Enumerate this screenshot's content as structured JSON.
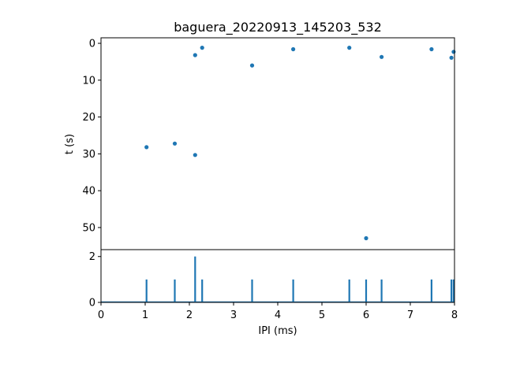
{
  "chart_data": [
    {
      "type": "scatter",
      "title": "baguera_20220913_145203_532",
      "xlabel": "",
      "ylabel": "t (s)",
      "xlim": [
        0,
        8
      ],
      "ylim": [
        56,
        -1.5
      ],
      "y_inverted": true,
      "yticks": [
        0,
        10,
        20,
        30,
        40,
        50
      ],
      "color": "#1f77b4",
      "points": [
        {
          "x": 1.03,
          "y": 28.2
        },
        {
          "x": 1.67,
          "y": 27.2
        },
        {
          "x": 2.13,
          "y": 30.3
        },
        {
          "x": 2.13,
          "y": 3.2
        },
        {
          "x": 2.29,
          "y": 1.2
        },
        {
          "x": 3.42,
          "y": 6.0
        },
        {
          "x": 4.35,
          "y": 1.6
        },
        {
          "x": 5.62,
          "y": 1.2
        },
        {
          "x": 6.0,
          "y": 52.9
        },
        {
          "x": 6.35,
          "y": 3.7
        },
        {
          "x": 7.48,
          "y": 1.6
        },
        {
          "x": 7.93,
          "y": 3.9
        },
        {
          "x": 7.98,
          "y": 2.3
        }
      ]
    },
    {
      "type": "histogram",
      "xlabel": "IPI (ms)",
      "ylabel": "",
      "xlim": [
        0,
        8
      ],
      "ylim": [
        0,
        2.3
      ],
      "xticks": [
        0,
        1,
        2,
        3,
        4,
        5,
        6,
        7,
        8
      ],
      "yticks": [
        0,
        2
      ],
      "color": "#1f77b4",
      "spikes": [
        {
          "x": 1.03,
          "count": 1
        },
        {
          "x": 1.67,
          "count": 1
        },
        {
          "x": 2.13,
          "count": 2
        },
        {
          "x": 2.29,
          "count": 1
        },
        {
          "x": 3.42,
          "count": 1
        },
        {
          "x": 4.35,
          "count": 1
        },
        {
          "x": 5.62,
          "count": 1
        },
        {
          "x": 6.0,
          "count": 1
        },
        {
          "x": 6.35,
          "count": 1
        },
        {
          "x": 7.48,
          "count": 1
        },
        {
          "x": 7.93,
          "count": 1
        },
        {
          "x": 7.98,
          "count": 1
        }
      ]
    }
  ]
}
